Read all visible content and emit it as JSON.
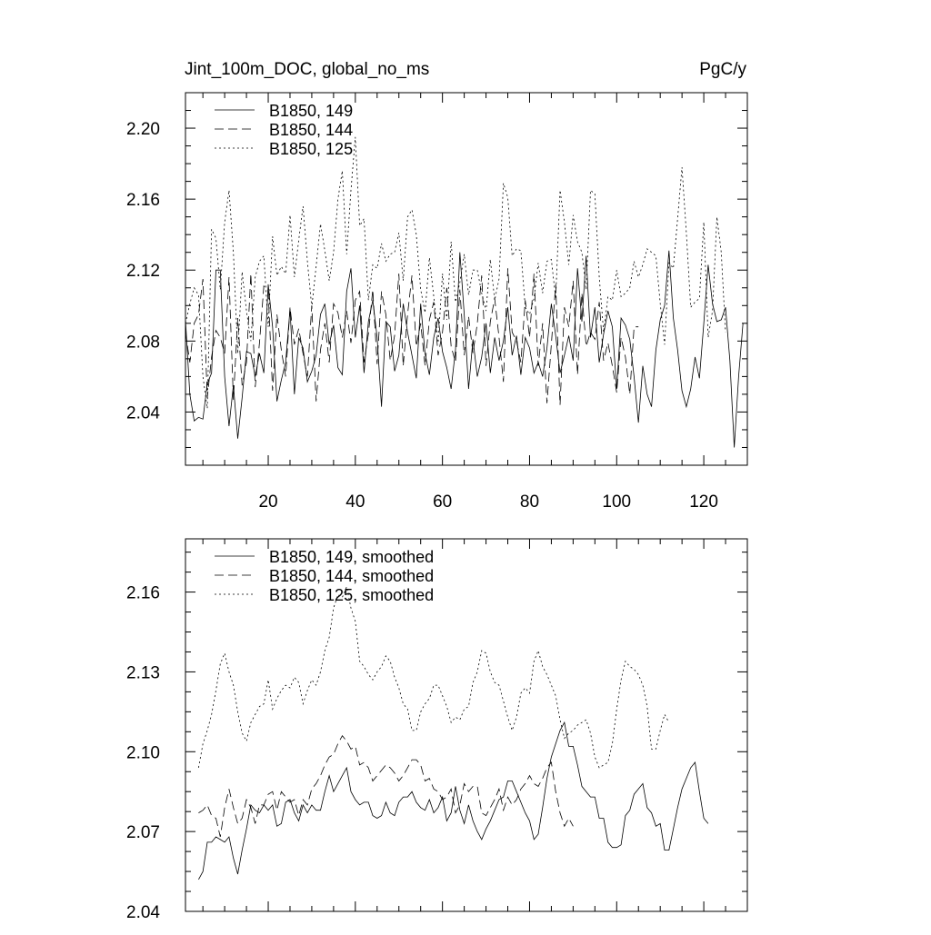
{
  "header": {
    "left_title": "Jint_100m_DOC, global_no_ms",
    "right_title": "PgC/y"
  },
  "chart_data": [
    {
      "type": "line",
      "title": "Jint_100m_DOC, global_no_ms",
      "units": "PgC/y",
      "xlim": [
        1,
        130
      ],
      "ylim": [
        2.01,
        2.22
      ],
      "xticks": [
        20,
        40,
        60,
        80,
        100,
        120
      ],
      "yticks": [
        2.04,
        2.08,
        2.12,
        2.16,
        2.2
      ],
      "ytick_labels": [
        "2.04",
        "2.08",
        "2.12",
        "2.16",
        "2.20"
      ],
      "legend_position": "top-left",
      "grid": false,
      "series": [
        {
          "name": "B1850, 149",
          "dash": "solid",
          "x_start": 1,
          "values": [
            2.092,
            2.05,
            2.035,
            2.037,
            2.036,
            2.056,
            2.062,
            2.12,
            2.12,
            2.06,
            2.032,
            2.055,
            2.025,
            2.048,
            2.074,
            2.073,
            2.06,
            2.073,
            2.062,
            2.112,
            2.088,
            2.046,
            2.058,
            2.068,
            2.098,
            2.05,
            2.082,
            2.076,
            2.057,
            2.063,
            2.072,
            2.095,
            2.101,
            2.078,
            2.089,
            2.065,
            2.061,
            2.108,
            2.121,
            2.082,
            2.1,
            2.062,
            2.091,
            2.103,
            2.082,
            2.043,
            2.091,
            2.088,
            2.063,
            2.072,
            2.101,
            2.085,
            2.072,
            2.059,
            2.101,
            2.073,
            2.061,
            2.082,
            2.093,
            2.074,
            2.065,
            2.053,
            2.075,
            2.13,
            2.095,
            2.053,
            2.081,
            2.06,
            2.071,
            2.09,
            2.062,
            2.082,
            2.069,
            2.08,
            2.099,
            2.072,
            2.083,
            2.061,
            2.082,
            2.076,
            2.062,
            2.068,
            2.06,
            2.076,
            2.101,
            2.083,
            2.062,
            2.072,
            2.083,
            2.069,
            2.121,
            2.091,
            2.128,
            2.082,
            2.099,
            2.068,
            2.084,
            2.097,
            2.088,
            2.053,
            2.093,
            2.089,
            2.081,
            2.06,
            2.034,
            2.066,
            2.05,
            2.043,
            2.075,
            2.092,
            2.1,
            2.131,
            2.093,
            2.075,
            2.052,
            2.043,
            2.053,
            2.071,
            2.059,
            2.09,
            2.123,
            2.101,
            2.091,
            2.092,
            2.099,
            2.069,
            2.02,
            2.06,
            2.09
          ]
        },
        {
          "name": "B1850, 144",
          "dash": "dashed",
          "x_start": 1,
          "values": [
            2.085,
            2.068,
            2.09,
            2.095,
            2.115,
            2.048,
            2.071,
            2.086,
            2.082,
            2.073,
            2.116,
            2.047,
            2.093,
            2.055,
            2.068,
            2.118,
            2.054,
            2.079,
            2.111,
            2.108,
            2.052,
            2.095,
            2.075,
            2.06,
            2.099,
            2.078,
            2.087,
            2.073,
            2.06,
            2.1,
            2.046,
            2.075,
            2.09,
            2.068,
            2.101,
            2.096,
            2.082,
            2.097,
            2.079,
            2.103,
            2.108,
            2.068,
            2.084,
            2.109,
            2.067,
            2.108,
            2.095,
            2.069,
            2.083,
            2.118,
            2.066,
            2.095,
            2.117,
            2.077,
            2.09,
            2.066,
            2.092,
            2.102,
            2.072,
            2.085,
            2.11,
            2.077,
            2.068,
            2.109,
            2.072,
            2.094,
            2.073,
            2.09,
            2.117,
            2.066,
            2.091,
            2.104,
            2.082,
            2.057,
            2.121,
            2.085,
            2.08,
            2.068,
            2.103,
            2.082,
            2.118,
            2.066,
            2.09,
            2.045,
            2.078,
            2.112,
            2.044,
            2.099,
            2.088,
            2.114,
            2.061,
            2.107,
            2.077,
            2.085,
            2.081,
            2.102,
            2.069,
            2.079,
            2.066,
            2.051,
            2.082,
            2.071,
            2.05,
            2.088,
            2.088
          ]
        },
        {
          "name": "B1850, 125",
          "dash": "dotted",
          "x_start": 1,
          "values": [
            2.09,
            2.101,
            2.11,
            2.106,
            2.06,
            2.042,
            2.143,
            2.138,
            2.109,
            2.147,
            2.165,
            2.13,
            2.073,
            2.119,
            2.097,
            2.08,
            2.116,
            2.125,
            2.128,
            2.088,
            2.139,
            2.117,
            2.122,
            2.118,
            2.151,
            2.116,
            2.137,
            2.156,
            2.125,
            2.099,
            2.122,
            2.146,
            2.131,
            2.114,
            2.13,
            2.16,
            2.176,
            2.129,
            2.165,
            2.195,
            2.145,
            2.149,
            2.103,
            2.123,
            2.121,
            2.135,
            2.125,
            2.129,
            2.13,
            2.141,
            2.114,
            2.15,
            2.154,
            2.14,
            2.109,
            2.096,
            2.127,
            2.105,
            2.079,
            2.118,
            2.092,
            2.136,
            2.102,
            2.113,
            2.129,
            2.106,
            2.12,
            2.12,
            2.107,
            2.097,
            2.126,
            2.103,
            2.115,
            2.169,
            2.161,
            2.128,
            2.132,
            2.131,
            2.099,
            2.095,
            2.104,
            2.124,
            2.107,
            2.125,
            2.126,
            2.104,
            2.165,
            2.147,
            2.123,
            2.151,
            2.136,
            2.13,
            2.109,
            2.165,
            2.163,
            2.116,
            2.085,
            2.105,
            2.103,
            2.12,
            2.105,
            2.107,
            2.11,
            2.125,
            2.116,
            2.123,
            2.132,
            2.13,
            2.128,
            2.101,
            2.078,
            2.124,
            2.121,
            2.149,
            2.178,
            2.141,
            2.099,
            2.102,
            2.104,
            2.147,
            2.082,
            2.097,
            2.15,
            2.13,
            2.085
          ]
        }
      ]
    },
    {
      "type": "line",
      "xlim": [
        1,
        130
      ],
      "ylim": [
        2.04,
        2.18
      ],
      "xticks": [
        20,
        40,
        60,
        80,
        100,
        120
      ],
      "yticks": [
        2.04,
        2.07,
        2.1,
        2.13,
        2.16
      ],
      "ytick_labels": [
        "2.04",
        "2.07",
        "2.10",
        "2.13",
        "2.16"
      ],
      "legend_position": "top-left",
      "grid": false,
      "series": [
        {
          "name": "B1850, 149, smoothed",
          "dash": "solid",
          "x_start": 4,
          "values": [
            2.052,
            2.055,
            2.066,
            2.066,
            2.068,
            2.067,
            2.066,
            2.068,
            2.06,
            2.054,
            2.063,
            2.071,
            2.08,
            2.078,
            2.077,
            2.08,
            2.078,
            2.08,
            2.072,
            2.073,
            2.081,
            2.082,
            2.077,
            2.074,
            2.08,
            2.077,
            2.08,
            2.078,
            2.078,
            2.085,
            2.091,
            2.085,
            2.088,
            2.091,
            2.094,
            2.085,
            2.082,
            2.08,
            2.081,
            2.081,
            2.076,
            2.075,
            2.076,
            2.081,
            2.077,
            2.076,
            2.081,
            2.083,
            2.083,
            2.085,
            2.081,
            2.079,
            2.078,
            2.082,
            2.077,
            2.079,
            2.083,
            2.074,
            2.077,
            2.087,
            2.078,
            2.073,
            2.08,
            2.074,
            2.07,
            2.067,
            2.071,
            2.074,
            2.078,
            2.082,
            2.083,
            2.089,
            2.089,
            2.085,
            2.081,
            2.077,
            2.074,
            2.067,
            2.069,
            2.079,
            2.09,
            2.098,
            2.103,
            2.108,
            2.111,
            2.102,
            2.102,
            2.095,
            2.087,
            2.085,
            2.083,
            2.083,
            2.075,
            2.075,
            2.066,
            2.064,
            2.064,
            2.065,
            2.076,
            2.078,
            2.084,
            2.086,
            2.088,
            2.079,
            2.077,
            2.072,
            2.073,
            2.063,
            2.063,
            2.071,
            2.079,
            2.086,
            2.09,
            2.094,
            2.096,
            2.085,
            2.075,
            2.073
          ]
        },
        {
          "name": "B1850, 144, smoothed",
          "dash": "dashed",
          "x_start": 4,
          "values": [
            2.077,
            2.078,
            2.08,
            2.076,
            2.075,
            2.068,
            2.079,
            2.086,
            2.079,
            2.073,
            2.075,
            2.082,
            2.079,
            2.073,
            2.08,
            2.08,
            2.084,
            2.085,
            2.078,
            2.085,
            2.083,
            2.081,
            2.082,
            2.076,
            2.082,
            2.08,
            2.086,
            2.088,
            2.091,
            2.095,
            2.098,
            2.099,
            2.103,
            2.106,
            2.104,
            2.101,
            2.102,
            2.095,
            2.096,
            2.094,
            2.089,
            2.091,
            2.093,
            2.095,
            2.094,
            2.092,
            2.089,
            2.091,
            2.094,
            2.097,
            2.097,
            2.095,
            2.089,
            2.09,
            2.086,
            2.085,
            2.082,
            2.083,
            2.086,
            2.077,
            2.08,
            2.088,
            2.085,
            2.087,
            2.087,
            2.077,
            2.076,
            2.079,
            2.082,
            2.086,
            2.078,
            2.083,
            2.08,
            2.082,
            2.086,
            2.088,
            2.091,
            2.088,
            2.087,
            2.09,
            2.094,
            2.096,
            2.085,
            2.077,
            2.072,
            2.075,
            2.072
          ]
        },
        {
          "name": "B1850, 125, smoothed",
          "dash": "dotted",
          "x_start": 4,
          "values": [
            2.094,
            2.103,
            2.108,
            2.114,
            2.123,
            2.133,
            2.137,
            2.13,
            2.125,
            2.115,
            2.107,
            2.104,
            2.111,
            2.114,
            2.117,
            2.118,
            2.127,
            2.116,
            2.12,
            2.123,
            2.125,
            2.124,
            2.128,
            2.126,
            2.118,
            2.123,
            2.127,
            2.125,
            2.13,
            2.138,
            2.143,
            2.154,
            2.159,
            2.158,
            2.162,
            2.154,
            2.149,
            2.134,
            2.132,
            2.129,
            2.127,
            2.13,
            2.132,
            2.136,
            2.134,
            2.128,
            2.124,
            2.118,
            2.116,
            2.108,
            2.108,
            2.115,
            2.118,
            2.12,
            2.125,
            2.125,
            2.121,
            2.117,
            2.111,
            2.113,
            2.112,
            2.116,
            2.117,
            2.126,
            2.13,
            2.138,
            2.137,
            2.13,
            2.126,
            2.125,
            2.119,
            2.113,
            2.108,
            2.113,
            2.122,
            2.124,
            2.122,
            2.134,
            2.138,
            2.132,
            2.129,
            2.125,
            2.121,
            2.112,
            2.105,
            2.107,
            2.108,
            2.11,
            2.111,
            2.112,
            2.107,
            2.098,
            2.094,
            2.095,
            2.096,
            2.103,
            2.116,
            2.127,
            2.134,
            2.132,
            2.131,
            2.129,
            2.125,
            2.117,
            2.101,
            2.101,
            2.108,
            2.114,
            2.111
          ]
        }
      ]
    }
  ]
}
